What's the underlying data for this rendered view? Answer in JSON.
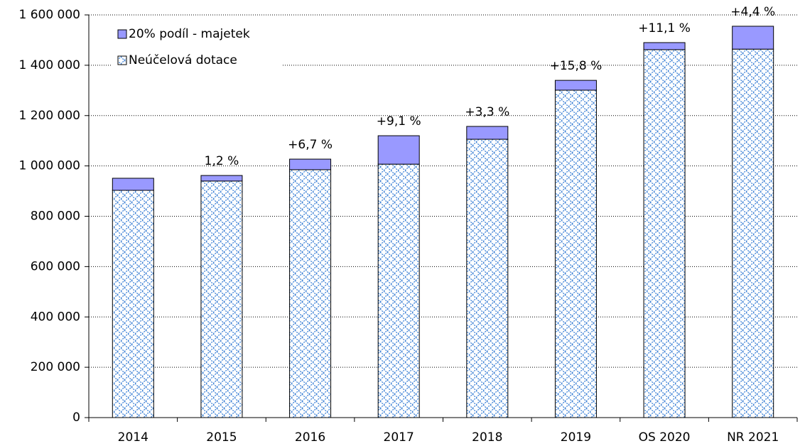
{
  "chart_data": {
    "type": "stacked_bar",
    "categories": [
      "2014",
      "2015",
      "2016",
      "2017",
      "2018",
      "2019",
      "OS 2020",
      "NR 2021"
    ],
    "series": [
      {
        "name": "Neúčelová dotace",
        "color": "#3a7fd5",
        "hatch": true,
        "values": [
          903000,
          940000,
          985000,
          1007000,
          1106000,
          1301000,
          1462000,
          1464000
        ]
      },
      {
        "name": "20% podíl - majetek",
        "color": "#9999ff",
        "hatch": false,
        "values": [
          48000,
          22000,
          42000,
          113000,
          51000,
          39000,
          28000,
          91000
        ]
      }
    ],
    "annotations": [
      null,
      "1,2 %",
      "+6,7 %",
      "+9,1 %",
      "+3,3 %",
      "+15,8 %",
      "+11,1 %",
      "+4,4 %"
    ],
    "ylim": [
      0,
      1600000
    ],
    "yticks": [
      0,
      {
        "value": 200000,
        "label": "200 000"
      },
      {
        "value": 400000,
        "label": "400 000"
      },
      {
        "value": 600000,
        "label": "600 000"
      },
      {
        "value": 800000,
        "label": "800 000"
      },
      {
        "value": 1000000,
        "label": "1 000 000"
      },
      {
        "value": 1200000,
        "label": "1 200 000"
      },
      {
        "value": 1400000,
        "label": "1 400 000"
      },
      {
        "value": 1600000,
        "label": "1 600 000"
      }
    ],
    "grid": true,
    "legend": "top-left"
  }
}
